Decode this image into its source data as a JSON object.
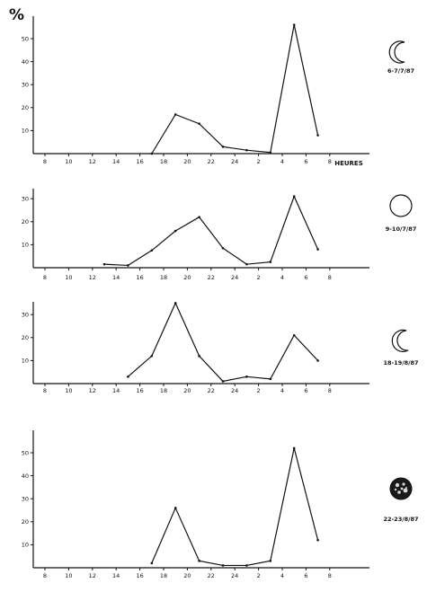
{
  "figure": {
    "y_unit": "%",
    "x_unit": "HEURES"
  },
  "chart_data": [
    {
      "type": "line",
      "moon_phase": "waxing-crescent",
      "date_label": "6-7/7/87",
      "x_ticks": [
        "8",
        "10",
        "12",
        "14",
        "16",
        "18",
        "20",
        "22",
        "24",
        "2",
        "4",
        "6",
        "8"
      ],
      "y_ticks": [
        10,
        20,
        30,
        40,
        50
      ],
      "ylim": [
        0,
        60
      ],
      "x": [
        "17",
        "19",
        "21",
        "23",
        "1",
        "3",
        "5",
        "7"
      ],
      "values": [
        0,
        17,
        13,
        3,
        1.5,
        0.5,
        56,
        8
      ],
      "show_x_unit": true
    },
    {
      "type": "line",
      "moon_phase": "full-moon",
      "date_label": "9-10/7/87",
      "x_ticks": [
        "8",
        "10",
        "12",
        "14",
        "16",
        "18",
        "20",
        "22",
        "24",
        "2",
        "4",
        "6",
        "8"
      ],
      "y_ticks": [
        10,
        20,
        30
      ],
      "ylim": [
        0,
        33
      ],
      "x": [
        "13",
        "15",
        "17",
        "19",
        "21",
        "23",
        "1",
        "3",
        "5",
        "7"
      ],
      "values": [
        1.5,
        1,
        7.5,
        16,
        22,
        8.5,
        1.5,
        2.5,
        31,
        8
      ],
      "show_x_unit": false
    },
    {
      "type": "line",
      "moon_phase": "waning-crescent",
      "date_label": "18-19/8/87",
      "x_ticks": [
        "8",
        "10",
        "12",
        "14",
        "16",
        "18",
        "20",
        "22",
        "24",
        "2",
        "4",
        "6",
        "8"
      ],
      "y_ticks": [
        10,
        20,
        30
      ],
      "ylim": [
        0,
        39
      ],
      "x": [
        "15",
        "17",
        "19",
        "21",
        "23",
        "1",
        "3",
        "5",
        "7"
      ],
      "values": [
        3,
        12,
        35,
        12,
        1,
        3,
        2,
        21,
        10
      ],
      "show_x_unit": false
    },
    {
      "type": "line",
      "moon_phase": "new-moon",
      "date_label": "22-23/8/87",
      "x_ticks": [
        "8",
        "10",
        "12",
        "14",
        "16",
        "18",
        "20",
        "22",
        "24",
        "2",
        "4",
        "6",
        "8"
      ],
      "y_ticks": [
        10,
        20,
        30,
        40,
        50
      ],
      "ylim": [
        0,
        58
      ],
      "x": [
        "17",
        "19",
        "21",
        "23",
        "1",
        "3",
        "5",
        "7"
      ],
      "values": [
        2,
        26,
        3,
        1,
        1,
        3,
        52,
        12
      ],
      "show_x_unit": false
    }
  ]
}
